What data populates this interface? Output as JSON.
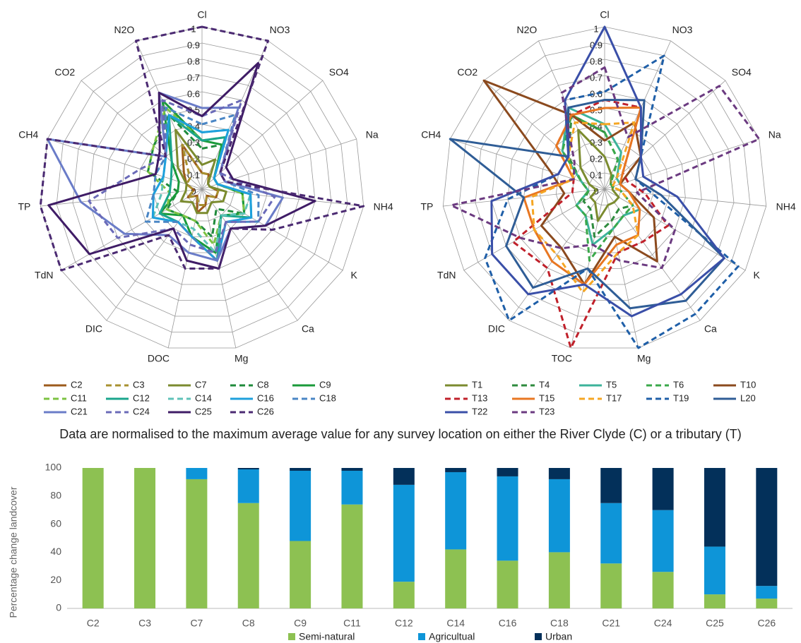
{
  "caption": "Data are normalised to the maximum average value for any survey location  on either the River Clyde (C) or a tributary (T)",
  "chart_data": [
    {
      "type": "radar",
      "categories": [
        "Cl",
        "NO3",
        "SO4",
        "Na",
        "NH4",
        "K",
        "Ca",
        "Mg",
        "DOC",
        "DIC",
        "TdN",
        "TP",
        "CH4",
        "CO2",
        "N2O"
      ],
      "rlim": [
        0,
        1
      ],
      "rticks": [
        0,
        0.1,
        0.2,
        0.3,
        0.4,
        0.5,
        0.6,
        0.7,
        0.8,
        0.9,
        1
      ],
      "grid": true,
      "series": [
        {
          "name": "C2",
          "color": "#9c5b1c",
          "style": "solid",
          "values": [
            0.1,
            0.1,
            0.05,
            0.05,
            0.1,
            0.1,
            0.05,
            0.1,
            0.15,
            0.05,
            0.1,
            0.05,
            0.1,
            0.15,
            0.3
          ]
        },
        {
          "name": "C3",
          "color": "#a89130",
          "style": "dashed",
          "values": [
            0.1,
            0.1,
            0.05,
            0.05,
            0.1,
            0.1,
            0.05,
            0.1,
            0.1,
            0.05,
            0.1,
            0.05,
            0.1,
            0.1,
            0.3
          ]
        },
        {
          "name": "C7",
          "color": "#7b8b2f",
          "style": "solid",
          "values": [
            0.15,
            0.2,
            0.05,
            0.05,
            0.15,
            0.15,
            0.1,
            0.15,
            0.15,
            0.1,
            0.15,
            0.1,
            0.1,
            0.2,
            0.4
          ]
        },
        {
          "name": "C8",
          "color": "#1f8b3b",
          "style": "dashed",
          "values": [
            0.25,
            0.3,
            0.1,
            0.1,
            0.25,
            0.3,
            0.15,
            0.3,
            0.2,
            0.2,
            0.25,
            0.15,
            0.35,
            0.4,
            0.5
          ]
        },
        {
          "name": "C9",
          "color": "#1a9a3a",
          "style": "solid",
          "values": [
            0.3,
            0.3,
            0.1,
            0.1,
            0.25,
            0.3,
            0.2,
            0.4,
            0.3,
            0.2,
            0.3,
            0.15,
            0.15,
            0.25,
            0.6
          ]
        },
        {
          "name": "C11",
          "color": "#7cc242",
          "style": "dashed",
          "values": [
            0.3,
            0.35,
            0.1,
            0.1,
            0.25,
            0.3,
            0.2,
            0.35,
            0.2,
            0.2,
            0.25,
            0.2,
            0.35,
            0.4,
            0.55
          ]
        },
        {
          "name": "C12",
          "color": "#1aa58c",
          "style": "solid",
          "values": [
            0.3,
            0.35,
            0.1,
            0.1,
            0.3,
            0.35,
            0.2,
            0.45,
            0.3,
            0.25,
            0.3,
            0.2,
            0.2,
            0.25,
            0.5
          ]
        },
        {
          "name": "C14",
          "color": "#5fc2b8",
          "style": "dashed",
          "values": [
            0.35,
            0.4,
            0.1,
            0.1,
            0.3,
            0.3,
            0.2,
            0.4,
            0.25,
            0.25,
            0.35,
            0.25,
            0.25,
            0.3,
            0.5
          ]
        },
        {
          "name": "C16",
          "color": "#1ea0dc",
          "style": "solid",
          "values": [
            0.35,
            0.4,
            0.1,
            0.1,
            0.3,
            0.35,
            0.25,
            0.45,
            0.3,
            0.25,
            0.35,
            0.3,
            0.25,
            0.3,
            0.5
          ]
        },
        {
          "name": "C18",
          "color": "#4a86c5",
          "style": "dashed",
          "values": [
            0.4,
            0.5,
            0.15,
            0.15,
            0.35,
            0.4,
            0.25,
            0.45,
            0.3,
            0.25,
            0.4,
            0.3,
            0.3,
            0.3,
            0.55
          ]
        },
        {
          "name": "C21",
          "color": "#6a7cc8",
          "style": "solid",
          "values": [
            0.5,
            0.55,
            0.15,
            0.15,
            0.5,
            0.45,
            0.3,
            0.45,
            0.4,
            0.35,
            0.55,
            0.75,
            1,
            0.3,
            0.65
          ]
        },
        {
          "name": "C24",
          "color": "#6a6ab8",
          "style": "dashed",
          "values": [
            0.45,
            0.6,
            0.15,
            0.2,
            0.45,
            0.4,
            0.25,
            0.4,
            0.35,
            0.3,
            0.6,
            0.7,
            0.4,
            0.3,
            0.6
          ]
        },
        {
          "name": "C25",
          "color": "#3f1c66",
          "style": "solid",
          "values": [
            0.45,
            0.85,
            0.2,
            0.2,
            0.7,
            0.45,
            0.3,
            0.5,
            0.45,
            0.3,
            0.8,
            0.95,
            0.3,
            0.35,
            0.65
          ]
        },
        {
          "name": "C26",
          "color": "#4b2a72",
          "style": "dashed",
          "values": [
            1,
            1,
            0.15,
            0.15,
            1,
            0.5,
            0.3,
            0.5,
            0.5,
            0.35,
            1,
            1,
            1,
            0.3,
            1
          ]
        }
      ]
    },
    {
      "type": "radar",
      "categories": [
        "Cl",
        "NO3",
        "SO4",
        "Na",
        "NH4",
        "K",
        "Ca",
        "Mg",
        "TOC",
        "DIC",
        "TdN",
        "TP",
        "CH4",
        "CO2",
        "N2O"
      ],
      "rlim": [
        0,
        1
      ],
      "rticks": [
        0,
        0.1,
        0.2,
        0.3,
        0.4,
        0.5,
        0.6,
        0.7,
        0.8,
        0.9,
        1
      ],
      "grid": true,
      "series": [
        {
          "name": "T1",
          "color": "#7b8b2f",
          "style": "solid",
          "values": [
            0.2,
            0.1,
            0.05,
            0.05,
            0.05,
            0.1,
            0.1,
            0.1,
            0.2,
            0.1,
            0.1,
            0.05,
            0.1,
            0.2,
            0.4
          ]
        },
        {
          "name": "T4",
          "color": "#2e8b3e",
          "style": "dashed",
          "values": [
            0.35,
            0.2,
            0.05,
            0.05,
            0.1,
            0.2,
            0.15,
            0.2,
            0.3,
            0.15,
            0.15,
            0.1,
            0.15,
            0.3,
            0.5
          ]
        },
        {
          "name": "T5",
          "color": "#3cb39a",
          "style": "solid",
          "values": [
            0.4,
            0.25,
            0.1,
            0.1,
            0.15,
            0.25,
            0.2,
            0.25,
            0.35,
            0.2,
            0.2,
            0.1,
            0.15,
            0.35,
            0.55
          ]
        },
        {
          "name": "T6",
          "color": "#3aa84a",
          "style": "dashed",
          "values": [
            0.35,
            0.2,
            0.05,
            0.05,
            0.1,
            0.2,
            0.2,
            0.25,
            0.45,
            0.2,
            0.2,
            0.1,
            0.15,
            0.35,
            0.5
          ]
        },
        {
          "name": "T10",
          "color": "#8b4a1e",
          "style": "solid",
          "values": [
            0.3,
            0.45,
            0.3,
            0.1,
            0.15,
            0.35,
            0.55,
            0.3,
            0.6,
            0.45,
            0.45,
            0.25,
            0.35,
            1,
            0.5
          ]
        },
        {
          "name": "T13",
          "color": "#c0202a",
          "style": "dashed",
          "values": [
            0.55,
            0.55,
            0.15,
            0.15,
            0.25,
            0.45,
            0.4,
            0.4,
            1,
            0.6,
            0.65,
            0.2,
            0.2,
            0.4,
            0.5
          ]
        },
        {
          "name": "T15",
          "color": "#e87722",
          "style": "solid",
          "values": [
            0.5,
            0.55,
            0.15,
            0.1,
            0.15,
            0.25,
            0.35,
            0.35,
            0.6,
            0.55,
            0.5,
            0.5,
            0.2,
            0.4,
            0.5
          ]
        },
        {
          "name": "T17",
          "color": "#f5a623",
          "style": "dashed",
          "values": [
            0.4,
            0.45,
            0.1,
            0.05,
            0.1,
            0.2,
            0.35,
            0.4,
            0.65,
            0.5,
            0.5,
            0.45,
            0.2,
            0.3,
            0.45
          ]
        },
        {
          "name": "T19",
          "color": "#1f5fa8",
          "style": "dashed",
          "values": [
            0.6,
            0.9,
            0.3,
            0.2,
            0.3,
            0.95,
            0.95,
            1,
            0.5,
            1,
            0.85,
            0.6,
            0.3,
            0.3,
            0.6
          ]
        },
        {
          "name": "L20",
          "color": "#2f5d96",
          "style": "solid",
          "values": [
            0.55,
            0.6,
            0.3,
            0.2,
            0.35,
            0.85,
            0.85,
            0.75,
            0.5,
            0.75,
            0.7,
            0.5,
            1,
            0.3,
            0.55
          ]
        },
        {
          "name": "T22",
          "color": "#3a4fa8",
          "style": "solid",
          "values": [
            1,
            0.55,
            0.3,
            0.25,
            0.45,
            0.85,
            0.8,
            0.8,
            0.6,
            0.8,
            0.8,
            0.7,
            0.3,
            0.3,
            0.6
          ]
        },
        {
          "name": "T23",
          "color": "#6b3a80",
          "style": "dashed",
          "values": [
            0.75,
            0.35,
            0.95,
            1,
            0.2,
            0.5,
            0.6,
            0.45,
            0.35,
            0.45,
            0.6,
            0.95,
            0.2,
            0.25,
            0.65
          ]
        }
      ]
    },
    {
      "type": "stacked_bar",
      "y_label": "Percentage change landcover",
      "categories": [
        "C2",
        "C3",
        "C7",
        "C8",
        "C9",
        "C11",
        "C12",
        "C14",
        "C16",
        "C18",
        "C21",
        "C24",
        "C25",
        "C26"
      ],
      "ylim": [
        0,
        100
      ],
      "yticks": [
        0,
        20,
        40,
        60,
        80,
        100
      ],
      "grid": false,
      "series": [
        {
          "name": "Semi-natural",
          "color": "#8dc152",
          "values": [
            100,
            100,
            92,
            75,
            48,
            74,
            19,
            42,
            34,
            40,
            32,
            26,
            10,
            7
          ]
        },
        {
          "name": "Agricultual",
          "color": "#0e95d8",
          "values": [
            0,
            0,
            8,
            24,
            50,
            24,
            69,
            55,
            60,
            52,
            43,
            44,
            34,
            9
          ]
        },
        {
          "name": "Urban",
          "color": "#03305a",
          "values": [
            0,
            0,
            0,
            1,
            2,
            2,
            12,
            3,
            6,
            8,
            25,
            30,
            56,
            84
          ]
        }
      ]
    }
  ]
}
